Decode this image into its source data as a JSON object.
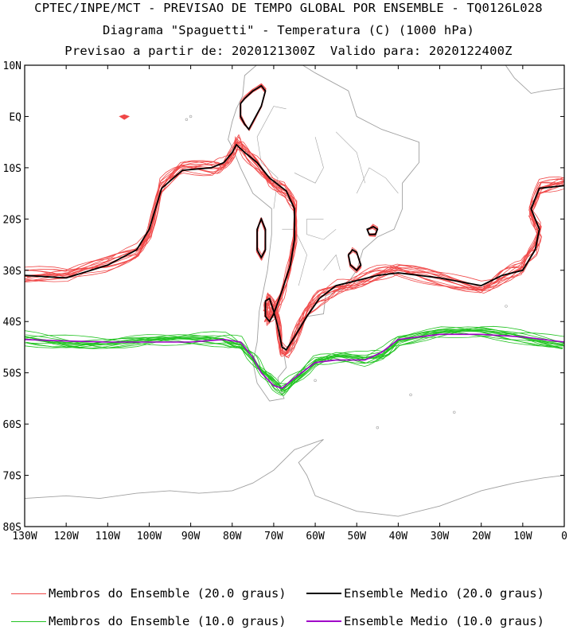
{
  "header": {
    "line1": "CPTEC/INPE/MCT - PREVISAO DE TEMPO GLOBAL POR ENSEMBLE - TQ0126L028",
    "line2": "Diagrama \"Spaguetti\" - Temperatura (C) (1000 hPa)",
    "line3": "Previsao a partir de: 2020121300Z  Valido para: 2020122400Z"
  },
  "axes": {
    "lat_labels": [
      "10N",
      "EQ",
      "10S",
      "20S",
      "30S",
      "40S",
      "50S",
      "60S",
      "70S",
      "80S"
    ],
    "lat_values": [
      10,
      0,
      -10,
      -20,
      -30,
      -40,
      -50,
      -60,
      -70,
      -80
    ],
    "lon_labels": [
      "130W",
      "120W",
      "110W",
      "100W",
      "90W",
      "80W",
      "70W",
      "60W",
      "50W",
      "40W",
      "30W",
      "20W",
      "10W",
      "0"
    ],
    "lon_values": [
      -130,
      -120,
      -110,
      -100,
      -90,
      -80,
      -70,
      -60,
      -50,
      -40,
      -30,
      -20,
      -10,
      0
    ]
  },
  "colors": {
    "members_20": "#f04848",
    "mean_20": "#000000",
    "members_10": "#22c322",
    "mean_10": "#a000c8",
    "coast": "#a0a0a0"
  },
  "legend": {
    "members_20": "Membros do Ensemble (20.0 graus)",
    "mean_20": "Ensemble Medio (20.0 graus)",
    "members_10": "Membros do Ensemble (10.0 graus)",
    "mean_10": "Ensemble Medio (10.0 graus)"
  },
  "isotherm_20_mean": [
    [
      -130,
      -31
    ],
    [
      -120,
      -31.5
    ],
    [
      -110,
      -29
    ],
    [
      -103,
      -26
    ],
    [
      -100,
      -22
    ],
    [
      -97,
      -14
    ],
    [
      -92,
      -10.5
    ],
    [
      -85,
      -10
    ],
    [
      -82,
      -9
    ],
    [
      -80,
      -7
    ],
    [
      -79,
      -5.5
    ],
    [
      -77,
      -7
    ],
    [
      -74,
      -9
    ],
    [
      -71,
      -12
    ],
    [
      -67,
      -14.5
    ],
    [
      -65,
      -18
    ],
    [
      -65,
      -24
    ],
    [
      -66,
      -29
    ],
    [
      -68,
      -34
    ],
    [
      -70,
      -38.5
    ],
    [
      -71,
      -40
    ],
    [
      -72,
      -39
    ],
    [
      -72,
      -36
    ],
    [
      -71,
      -35.5
    ],
    [
      -70,
      -38
    ],
    [
      -69,
      -41
    ],
    [
      -68,
      -45
    ],
    [
      -67,
      -45.5
    ],
    [
      -65,
      -43
    ],
    [
      -62,
      -39
    ],
    [
      -59,
      -35.5
    ],
    [
      -55,
      -33
    ],
    [
      -50,
      -32
    ],
    [
      -45,
      -31
    ],
    [
      -40,
      -30.5
    ],
    [
      -30,
      -31.5
    ],
    [
      -20,
      -33
    ],
    [
      -15,
      -31
    ],
    [
      -10,
      -30
    ],
    [
      -7,
      -26
    ],
    [
      -6,
      -22
    ],
    [
      -8,
      -18
    ],
    [
      -6,
      -14
    ],
    [
      0,
      -13.5
    ]
  ],
  "isotherm_20_islands": [
    [
      [
        -78,
        2.5
      ],
      [
        -77,
        3.5
      ],
      [
        -75,
        5
      ],
      [
        -73,
        6
      ],
      [
        -72,
        5
      ],
      [
        -73,
        2
      ],
      [
        -75,
        -1
      ],
      [
        -76,
        -2.5
      ],
      [
        -77,
        -1.5
      ],
      [
        -78,
        0
      ]
    ],
    [
      [
        -73,
        -20
      ],
      [
        -72,
        -22
      ],
      [
        -72,
        -26
      ],
      [
        -73,
        -27.5
      ],
      [
        -74,
        -26
      ],
      [
        -74,
        -22
      ]
    ],
    [
      [
        -51,
        -26
      ],
      [
        -50,
        -26.5
      ],
      [
        -49,
        -29
      ],
      [
        -50,
        -30
      ],
      [
        -51.5,
        -29
      ],
      [
        -52,
        -27
      ]
    ],
    [
      [
        -46,
        -21.5
      ],
      [
        -45,
        -22
      ],
      [
        -45.5,
        -23
      ],
      [
        -47,
        -23
      ],
      [
        -47.5,
        -22
      ]
    ]
  ],
  "isotherm_20_blobs": [
    [
      [
        -107,
        0
      ],
      [
        -106,
        -0.5
      ],
      [
        -105,
        0
      ],
      [
        -106,
        0.3
      ]
    ]
  ],
  "isotherm_10_mean": [
    [
      -130,
      -43.5
    ],
    [
      -120,
      -43.8
    ],
    [
      -110,
      -44
    ],
    [
      -100,
      -44
    ],
    [
      -90,
      -44
    ],
    [
      -82,
      -43.5
    ],
    [
      -78,
      -44
    ],
    [
      -75,
      -47
    ],
    [
      -73,
      -50
    ],
    [
      -70,
      -52.5
    ],
    [
      -68,
      -53
    ],
    [
      -65,
      -51
    ],
    [
      -60,
      -48
    ],
    [
      -55,
      -47.5
    ],
    [
      -48,
      -47.5
    ],
    [
      -44,
      -46
    ],
    [
      -40,
      -43.5
    ],
    [
      -30,
      -42.5
    ],
    [
      -20,
      -42.5
    ],
    [
      -10,
      -43
    ],
    [
      0,
      -44
    ]
  ]
}
